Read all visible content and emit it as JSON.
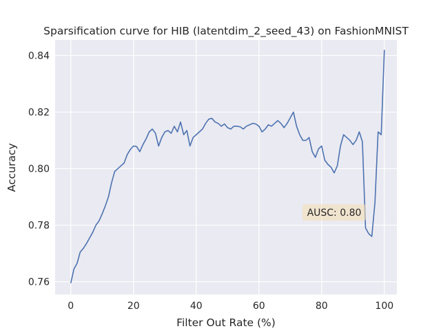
{
  "chart_data": {
    "type": "line",
    "title": "Sparsification curve for HIB (latentdim_2_seed_43) on FashionMNIST",
    "xlabel": "Filter Out Rate (%)",
    "ylabel": "Accuracy",
    "xlim": [
      -5,
      104
    ],
    "ylim": [
      0.7555,
      0.8455
    ],
    "xticks": [
      0,
      20,
      40,
      60,
      80,
      100
    ],
    "xtick_labels": [
      "0",
      "20",
      "40",
      "60",
      "80",
      "100"
    ],
    "yticks": [
      0.76,
      0.78,
      0.8,
      0.82,
      0.84
    ],
    "ytick_labels": [
      "0.76",
      "0.78",
      "0.80",
      "0.82",
      "0.84"
    ],
    "grid": true,
    "background": "#eaeaf2",
    "line_color": "#4c72b0",
    "annotation": {
      "text": "AUSC: 0.80",
      "x": 84,
      "y": 0.7845,
      "box_color": "#f5deb3"
    },
    "series": [
      {
        "x": [
          0,
          1,
          2,
          3,
          4,
          5,
          6,
          7,
          8,
          9,
          10,
          11,
          12,
          13,
          14,
          15,
          16,
          17,
          18,
          19,
          20,
          21,
          22,
          23,
          24,
          25,
          26,
          27,
          28,
          29,
          30,
          31,
          32,
          33,
          34,
          35,
          36,
          37,
          38,
          39,
          40,
          41,
          42,
          43,
          44,
          45,
          46,
          47,
          48,
          49,
          50,
          51,
          52,
          53,
          54,
          55,
          56,
          57,
          58,
          59,
          60,
          61,
          62,
          63,
          64,
          65,
          66,
          67,
          68,
          69,
          70,
          71,
          72,
          73,
          74,
          75,
          76,
          77,
          78,
          79,
          80,
          81,
          82,
          83,
          84,
          85,
          86,
          87,
          88,
          89,
          90,
          91,
          92,
          93,
          94,
          95,
          96,
          97,
          98,
          99,
          100
        ],
        "y": [
          0.7595,
          0.7645,
          0.7665,
          0.7705,
          0.7718,
          0.7735,
          0.7755,
          0.7775,
          0.78,
          0.7815,
          0.784,
          0.7868,
          0.79,
          0.795,
          0.799,
          0.8,
          0.801,
          0.802,
          0.805,
          0.8068,
          0.808,
          0.8078,
          0.806,
          0.8085,
          0.8105,
          0.813,
          0.814,
          0.8125,
          0.808,
          0.811,
          0.813,
          0.8135,
          0.8125,
          0.815,
          0.813,
          0.8165,
          0.812,
          0.8135,
          0.808,
          0.811,
          0.812,
          0.813,
          0.814,
          0.816,
          0.8175,
          0.8178,
          0.8165,
          0.816,
          0.815,
          0.8158,
          0.8145,
          0.814,
          0.815,
          0.815,
          0.8148,
          0.814,
          0.815,
          0.8155,
          0.816,
          0.8158,
          0.815,
          0.813,
          0.814,
          0.8155,
          0.815,
          0.816,
          0.817,
          0.816,
          0.8145,
          0.816,
          0.818,
          0.82,
          0.815,
          0.812,
          0.81,
          0.81,
          0.811,
          0.806,
          0.804,
          0.807,
          0.808,
          0.803,
          0.8015,
          0.8005,
          0.7985,
          0.801,
          0.808,
          0.812,
          0.811,
          0.81,
          0.8085,
          0.81,
          0.813,
          0.8095,
          0.779,
          0.777,
          0.776,
          0.788,
          0.813,
          0.812,
          0.842
        ]
      }
    ]
  }
}
